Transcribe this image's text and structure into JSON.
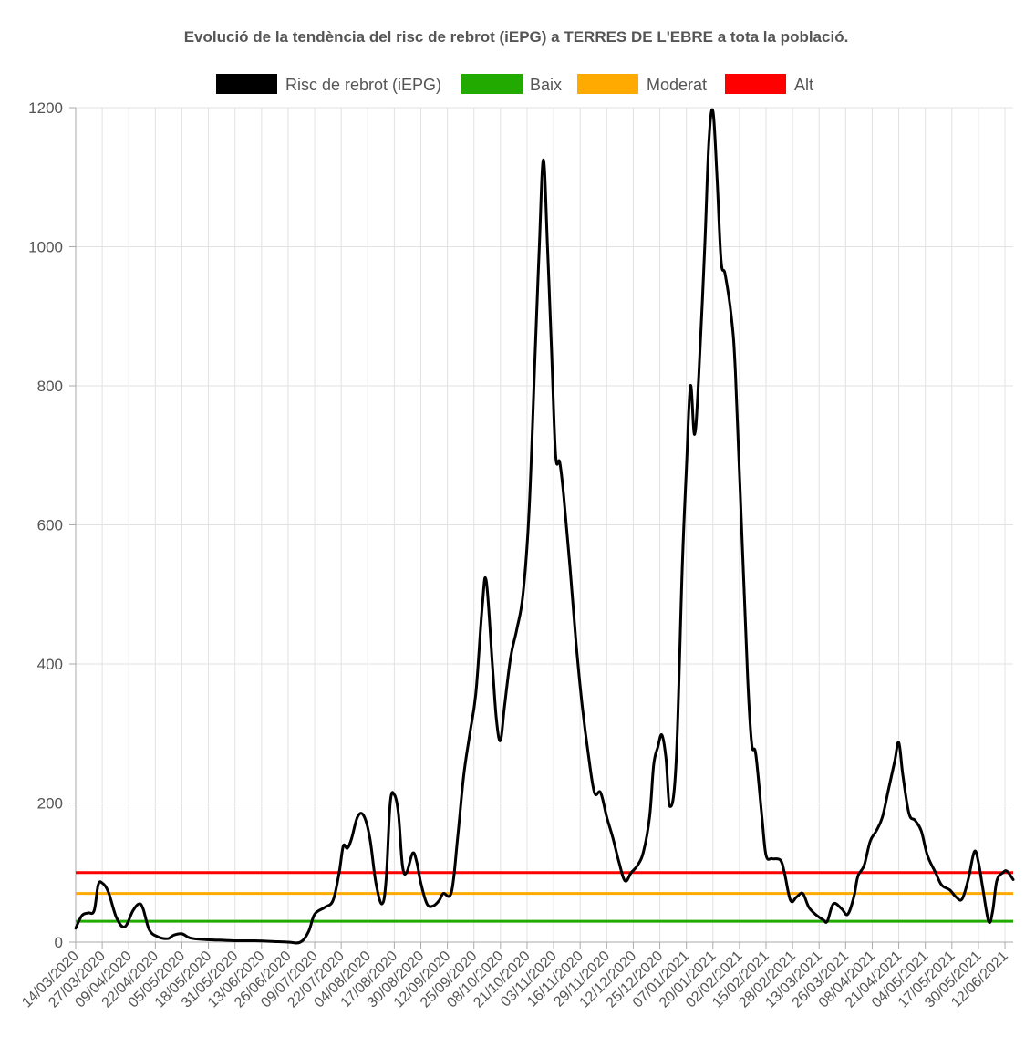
{
  "chart_data": {
    "type": "line",
    "title": "Evolució de la tendència del risc de rebrot (iEPG) a TERRES DE L'EBRE a tota la població.",
    "xlabel": "",
    "ylabel": "",
    "ylim": [
      0,
      1200
    ],
    "yticks": [
      0,
      200,
      400,
      600,
      800,
      1000,
      1200
    ],
    "grid": true,
    "legend_position": "top",
    "x_start": "14/03/2020",
    "x_end": "16/06/2021",
    "xtick_labels": [
      "14/03/2020",
      "27/03/2020",
      "09/04/2020",
      "22/04/2020",
      "05/05/2020",
      "18/05/2020",
      "31/05/2020",
      "13/06/2020",
      "26/06/2020",
      "09/07/2020",
      "22/07/2020",
      "04/08/2020",
      "17/08/2020",
      "30/08/2020",
      "12/09/2020",
      "25/09/2020",
      "08/10/2020",
      "21/10/2020",
      "03/11/2020",
      "16/11/2020",
      "29/11/2020",
      "12/12/2020",
      "25/12/2020",
      "07/01/2021",
      "20/01/2021",
      "02/02/2021",
      "15/02/2021",
      "28/02/2021",
      "13/03/2021",
      "26/03/2021",
      "08/04/2021",
      "21/04/2021",
      "04/05/2021",
      "17/05/2021",
      "30/05/2021",
      "12/06/2021"
    ],
    "series": [
      {
        "name": "Risc de rebrot (iEPG)",
        "color": "#000000",
        "points": [
          [
            "14/03/2020",
            20
          ],
          [
            "17/03/2020",
            38
          ],
          [
            "20/03/2020",
            42
          ],
          [
            "23/03/2020",
            45
          ],
          [
            "25/03/2020",
            82
          ],
          [
            "27/03/2020",
            85
          ],
          [
            "30/03/2020",
            72
          ],
          [
            "03/04/2020",
            35
          ],
          [
            "07/04/2020",
            22
          ],
          [
            "11/04/2020",
            45
          ],
          [
            "14/04/2020",
            55
          ],
          [
            "16/04/2020",
            48
          ],
          [
            "19/04/2020",
            18
          ],
          [
            "23/04/2020",
            8
          ],
          [
            "28/04/2020",
            5
          ],
          [
            "01/05/2020",
            10
          ],
          [
            "05/05/2020",
            12
          ],
          [
            "09/05/2020",
            6
          ],
          [
            "15/05/2020",
            4
          ],
          [
            "22/05/2020",
            3
          ],
          [
            "01/06/2020",
            2
          ],
          [
            "10/06/2020",
            2
          ],
          [
            "18/06/2020",
            1
          ],
          [
            "26/06/2020",
            0
          ],
          [
            "02/07/2020",
            0
          ],
          [
            "06/07/2020",
            15
          ],
          [
            "09/07/2020",
            40
          ],
          [
            "14/07/2020",
            50
          ],
          [
            "18/07/2020",
            60
          ],
          [
            "21/07/2020",
            100
          ],
          [
            "23/07/2020",
            138
          ],
          [
            "25/07/2020",
            135
          ],
          [
            "27/07/2020",
            148
          ],
          [
            "30/07/2020",
            180
          ],
          [
            "02/08/2020",
            182
          ],
          [
            "05/08/2020",
            150
          ],
          [
            "08/08/2020",
            85
          ],
          [
            "11/08/2020",
            55
          ],
          [
            "13/08/2020",
            90
          ],
          [
            "15/08/2020",
            200
          ],
          [
            "17/08/2020",
            212
          ],
          [
            "19/08/2020",
            185
          ],
          [
            "21/08/2020",
            110
          ],
          [
            "23/08/2020",
            100
          ],
          [
            "26/08/2020",
            128
          ],
          [
            "28/08/2020",
            115
          ],
          [
            "30/08/2020",
            85
          ],
          [
            "02/09/2020",
            55
          ],
          [
            "05/09/2020",
            52
          ],
          [
            "08/09/2020",
            60
          ],
          [
            "10/09/2020",
            70
          ],
          [
            "14/09/2020",
            72
          ],
          [
            "17/09/2020",
            150
          ],
          [
            "20/09/2020",
            240
          ],
          [
            "23/09/2020",
            300
          ],
          [
            "26/09/2020",
            360
          ],
          [
            "29/09/2020",
            480
          ],
          [
            "01/10/2020",
            520
          ],
          [
            "04/10/2020",
            400
          ],
          [
            "06/10/2020",
            320
          ],
          [
            "08/10/2020",
            290
          ],
          [
            "10/10/2020",
            340
          ],
          [
            "13/10/2020",
            410
          ],
          [
            "16/10/2020",
            450
          ],
          [
            "19/10/2020",
            500
          ],
          [
            "22/10/2020",
            620
          ],
          [
            "25/10/2020",
            850
          ],
          [
            "27/10/2020",
            1000
          ],
          [
            "29/10/2020",
            1125
          ],
          [
            "31/10/2020",
            1000
          ],
          [
            "02/11/2020",
            850
          ],
          [
            "04/11/2020",
            700
          ],
          [
            "06/11/2020",
            690
          ],
          [
            "08/11/2020",
            640
          ],
          [
            "11/11/2020",
            540
          ],
          [
            "14/11/2020",
            430
          ],
          [
            "17/11/2020",
            340
          ],
          [
            "20/11/2020",
            270
          ],
          [
            "23/11/2020",
            215
          ],
          [
            "26/11/2020",
            215
          ],
          [
            "29/11/2020",
            180
          ],
          [
            "02/12/2020",
            150
          ],
          [
            "05/12/2020",
            115
          ],
          [
            "08/12/2020",
            88
          ],
          [
            "11/12/2020",
            100
          ],
          [
            "14/12/2020",
            110
          ],
          [
            "17/12/2020",
            130
          ],
          [
            "20/12/2020",
            180
          ],
          [
            "22/12/2020",
            255
          ],
          [
            "24/12/2020",
            280
          ],
          [
            "26/12/2020",
            298
          ],
          [
            "28/12/2020",
            265
          ],
          [
            "30/12/2020",
            195
          ],
          [
            "02/01/2021",
            260
          ],
          [
            "05/01/2021",
            540
          ],
          [
            "07/01/2021",
            680
          ],
          [
            "09/01/2021",
            800
          ],
          [
            "11/01/2021",
            730
          ],
          [
            "13/01/2021",
            810
          ],
          [
            "16/01/2021",
            1000
          ],
          [
            "18/01/2021",
            1150
          ],
          [
            "20/01/2021",
            1195
          ],
          [
            "22/01/2021",
            1100
          ],
          [
            "24/01/2021",
            980
          ],
          [
            "26/01/2021",
            960
          ],
          [
            "29/01/2021",
            900
          ],
          [
            "31/01/2021",
            820
          ],
          [
            "03/02/2021",
            600
          ],
          [
            "06/02/2021",
            380
          ],
          [
            "08/02/2021",
            285
          ],
          [
            "10/02/2021",
            270
          ],
          [
            "13/02/2021",
            180
          ],
          [
            "15/02/2021",
            125
          ],
          [
            "18/02/2021",
            120
          ],
          [
            "22/02/2021",
            118
          ],
          [
            "24/02/2021",
            100
          ],
          [
            "27/02/2021",
            60
          ],
          [
            "02/03/2021",
            65
          ],
          [
            "05/03/2021",
            70
          ],
          [
            "08/03/2021",
            50
          ],
          [
            "12/03/2021",
            38
          ],
          [
            "15/03/2021",
            32
          ],
          [
            "17/03/2021",
            30
          ],
          [
            "20/03/2021",
            55
          ],
          [
            "24/03/2021",
            48
          ],
          [
            "27/03/2021",
            40
          ],
          [
            "30/03/2021",
            65
          ],
          [
            "01/04/2021",
            95
          ],
          [
            "04/04/2021",
            110
          ],
          [
            "07/04/2021",
            145
          ],
          [
            "10/04/2021",
            160
          ],
          [
            "13/04/2021",
            180
          ],
          [
            "16/04/2021",
            220
          ],
          [
            "19/04/2021",
            260
          ],
          [
            "21/04/2021",
            287
          ],
          [
            "23/04/2021",
            240
          ],
          [
            "26/04/2021",
            185
          ],
          [
            "29/04/2021",
            175
          ],
          [
            "02/05/2021",
            160
          ],
          [
            "05/05/2021",
            125
          ],
          [
            "09/05/2021",
            100
          ],
          [
            "12/05/2021",
            82
          ],
          [
            "16/05/2021",
            75
          ],
          [
            "19/05/2021",
            65
          ],
          [
            "22/05/2021",
            62
          ],
          [
            "25/05/2021",
            90
          ],
          [
            "28/05/2021",
            130
          ],
          [
            "30/05/2021",
            115
          ],
          [
            "01/06/2021",
            80
          ],
          [
            "04/06/2021",
            30
          ],
          [
            "06/06/2021",
            45
          ],
          [
            "08/06/2021",
            88
          ],
          [
            "11/06/2021",
            100
          ],
          [
            "13/06/2021",
            102
          ],
          [
            "16/06/2021",
            90
          ]
        ]
      },
      {
        "name": "Baix",
        "color": "#22aa00",
        "constant": 30
      },
      {
        "name": "Moderat",
        "color": "#ffaa00",
        "constant": 70
      },
      {
        "name": "Alt",
        "color": "#ff0000",
        "constant": 100
      }
    ]
  }
}
